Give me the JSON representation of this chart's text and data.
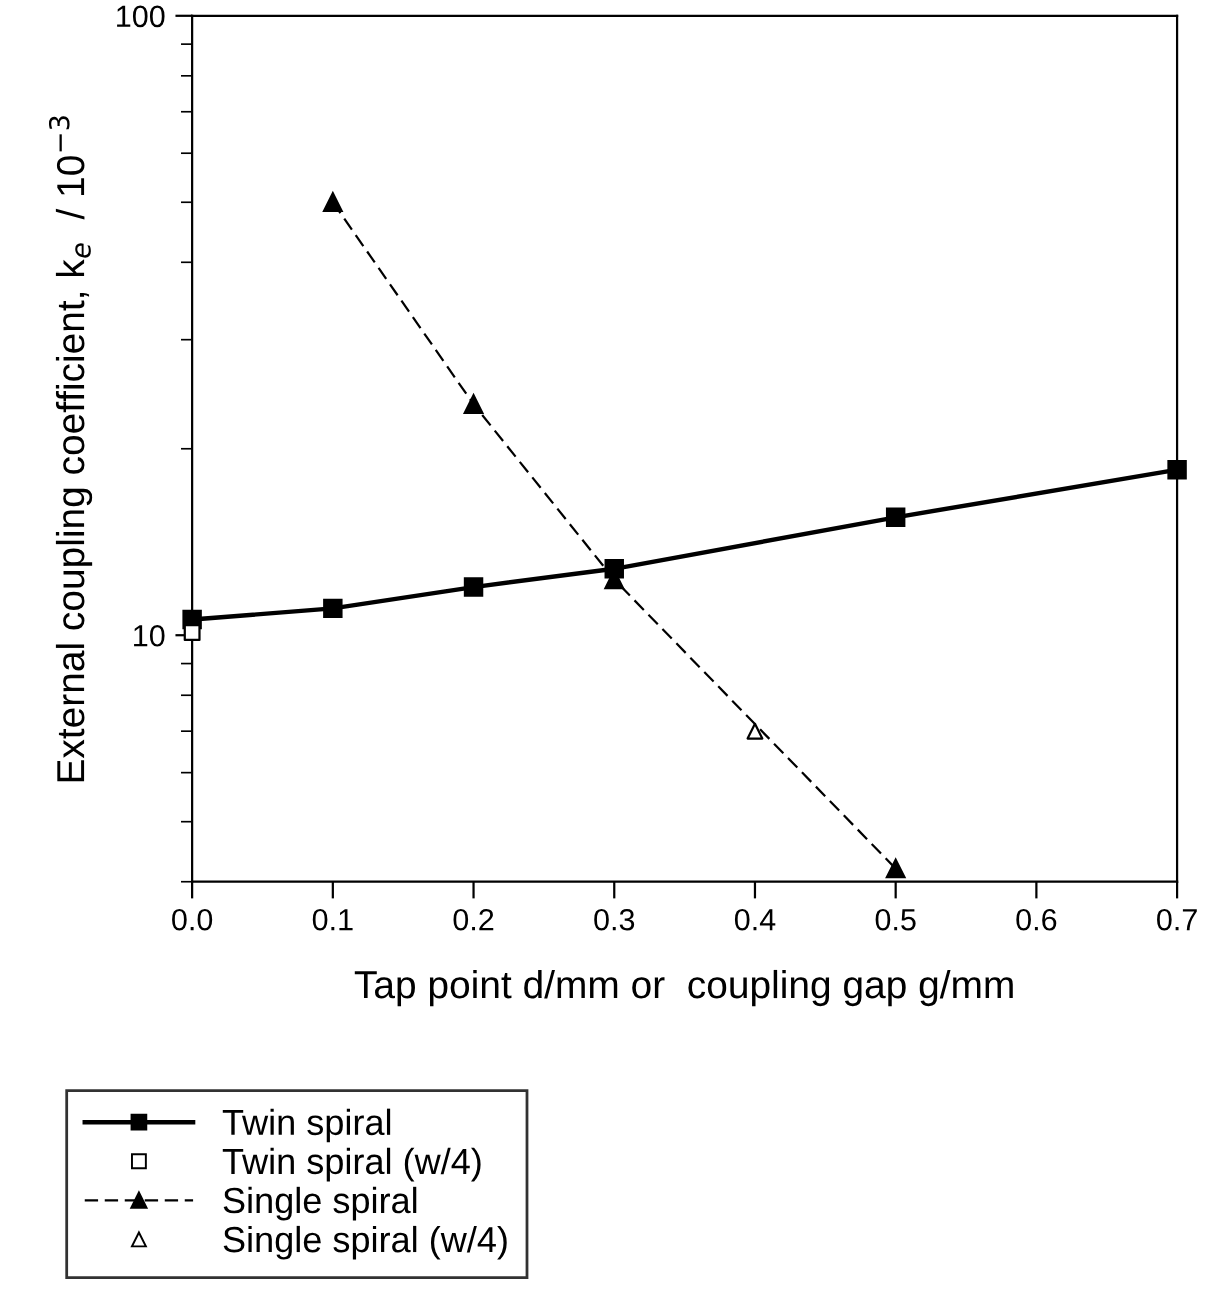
{
  "chart_data": {
    "type": "line",
    "xlabel": "Tap point d/mm or  coupling gap g/mm",
    "ylabel": "External coupling coefficient, k$_{e}$  / 10$^{−3}$",
    "xlim": [
      0,
      0.7
    ],
    "xticks": [
      {
        "value": 0,
        "label": "0.0"
      },
      0.1,
      0.2,
      0.3,
      0.4,
      0.5,
      0.6,
      0.7
    ],
    "ylim": [
      4,
      100
    ],
    "yticks": [
      10,
      100
    ],
    "log": "y",
    "grid": false,
    "legend": "bottom left",
    "series": [
      {
        "name": "Twin spiral",
        "color": "#000000",
        "marker": "square",
        "line_style": "solid",
        "x": [
          0,
          0.1,
          0.2,
          0.3,
          0.5,
          0.7
        ],
        "values": [
          10.6,
          11.05,
          11.96,
          12.8,
          15.5,
          18.5
        ]
      },
      {
        "name": "Twin spiral (w/4)",
        "type": "scatter",
        "color": "#000000",
        "marker": "square",
        "x": [
          0
        ],
        "values": [
          10.1
        ]
      },
      {
        "name": "Single spiral",
        "color": "#000000",
        "marker": "triangle",
        "line_style": "dashed",
        "x": [
          0.1,
          0.2,
          0.3,
          0.5
        ],
        "values": [
          50,
          23.6,
          12.3,
          4.2
        ]
      },
      {
        "name": "Single spiral (w/4)",
        "type": "scatter",
        "color": "#000000",
        "marker": "triangle",
        "x": [
          0.4
        ],
        "values": [
          7.0
        ]
      }
    ]
  }
}
